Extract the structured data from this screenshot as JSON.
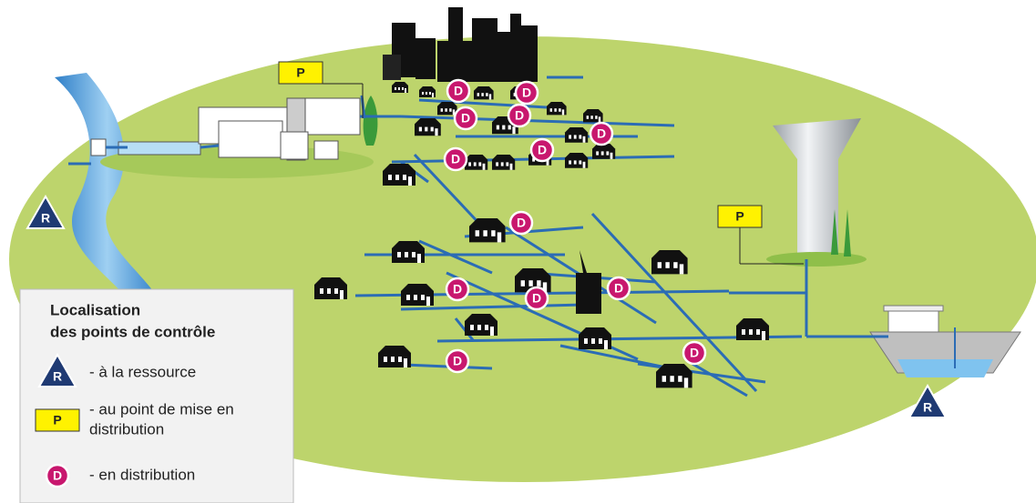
{
  "legend": {
    "title_lines": [
      "Localisation",
      "des points de contrôle"
    ],
    "items": [
      {
        "symbol": "R",
        "label_lines": [
          "- à la ressource"
        ]
      },
      {
        "symbol": "P",
        "label_lines": [
          "- au point de mise en",
          "distribution"
        ]
      },
      {
        "symbol": "D",
        "label_lines": [
          "- en distribution"
        ]
      }
    ]
  },
  "map_markers": {
    "resource": [
      "R",
      "R"
    ],
    "distribution_point": [
      "P",
      "P"
    ],
    "distribution": [
      "D",
      "D",
      "D",
      "D",
      "D",
      "D",
      "D",
      "D",
      "D",
      "D",
      "D",
      "D",
      "D"
    ]
  }
}
